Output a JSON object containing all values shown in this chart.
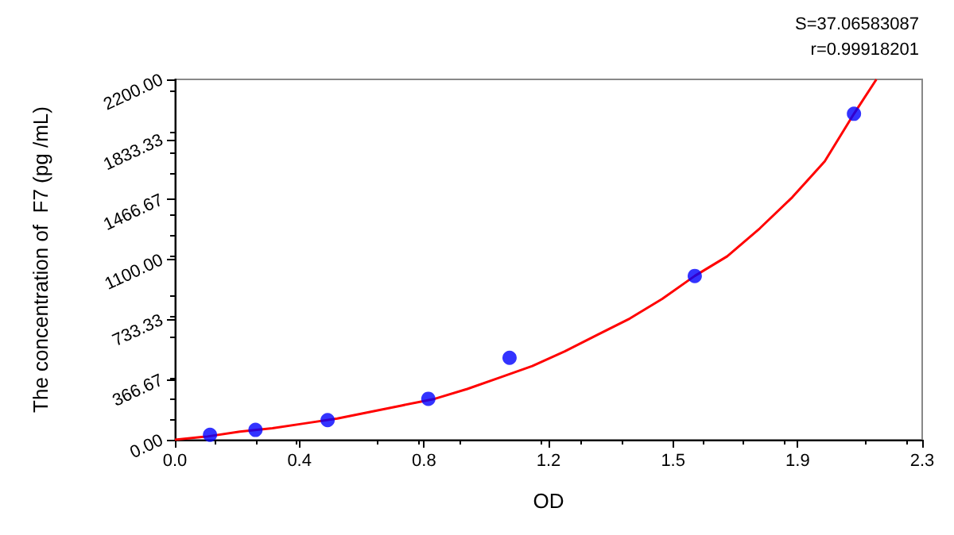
{
  "chart_data": {
    "type": "scatter",
    "xlabel": "OD",
    "ylabel": "The concentration of  F7 (pg /mL)",
    "annotations": [
      "S=37.06583087",
      "r=0.99918201"
    ],
    "series": [
      {
        "color": "#0000ff",
        "marker": "circle",
        "x": [
          0.108,
          0.248,
          0.47,
          0.78,
          1.03,
          1.6,
          2.09
        ],
        "values": [
          30,
          60,
          120,
          250,
          500,
          1000,
          1990
        ]
      },
      {
        "type": "line",
        "color": "#ff0000",
        "marker": "none",
        "x": [
          0,
          0.1,
          0.2,
          0.3,
          0.4,
          0.5,
          0.6,
          0.7,
          0.8,
          0.9,
          1.0,
          1.1,
          1.2,
          1.3,
          1.4,
          1.5,
          1.6,
          1.7,
          1.8,
          1.9,
          2.0,
          2.09,
          2.159
        ],
        "values": [
          0,
          20,
          50,
          70,
          100,
          130,
          170,
          210,
          250,
          310,
          380,
          450,
          540,
          640,
          740,
          860,
          1000,
          1120,
          1290,
          1480,
          1700,
          1990,
          2200
        ]
      }
    ],
    "xlim": [
      0,
      2.3
    ],
    "xticks": [
      {
        "value": 0,
        "label": "0.0"
      },
      {
        "value": 0.38333,
        "label": "0.4"
      },
      {
        "value": 0.76667,
        "label": "0.8"
      },
      {
        "value": 1.15,
        "label": "1.2"
      },
      {
        "value": 1.53333,
        "label": "1.5"
      },
      {
        "value": 1.91667,
        "label": "1.9"
      },
      {
        "value": 2.3,
        "label": "2.3"
      }
    ],
    "ylim": [
      0,
      2200
    ],
    "yticks": [
      {
        "value": 0,
        "label": "0.00"
      },
      {
        "value": 366.67,
        "label": "366.67"
      },
      {
        "value": 733.33,
        "label": "733.33"
      },
      {
        "value": 1100,
        "label": "1100.00"
      },
      {
        "value": 1466.67,
        "label": "1466.67"
      },
      {
        "value": 1833.33,
        "label": "1833.33"
      },
      {
        "value": 2200,
        "label": "2200.00"
      }
    ],
    "grid": false
  }
}
